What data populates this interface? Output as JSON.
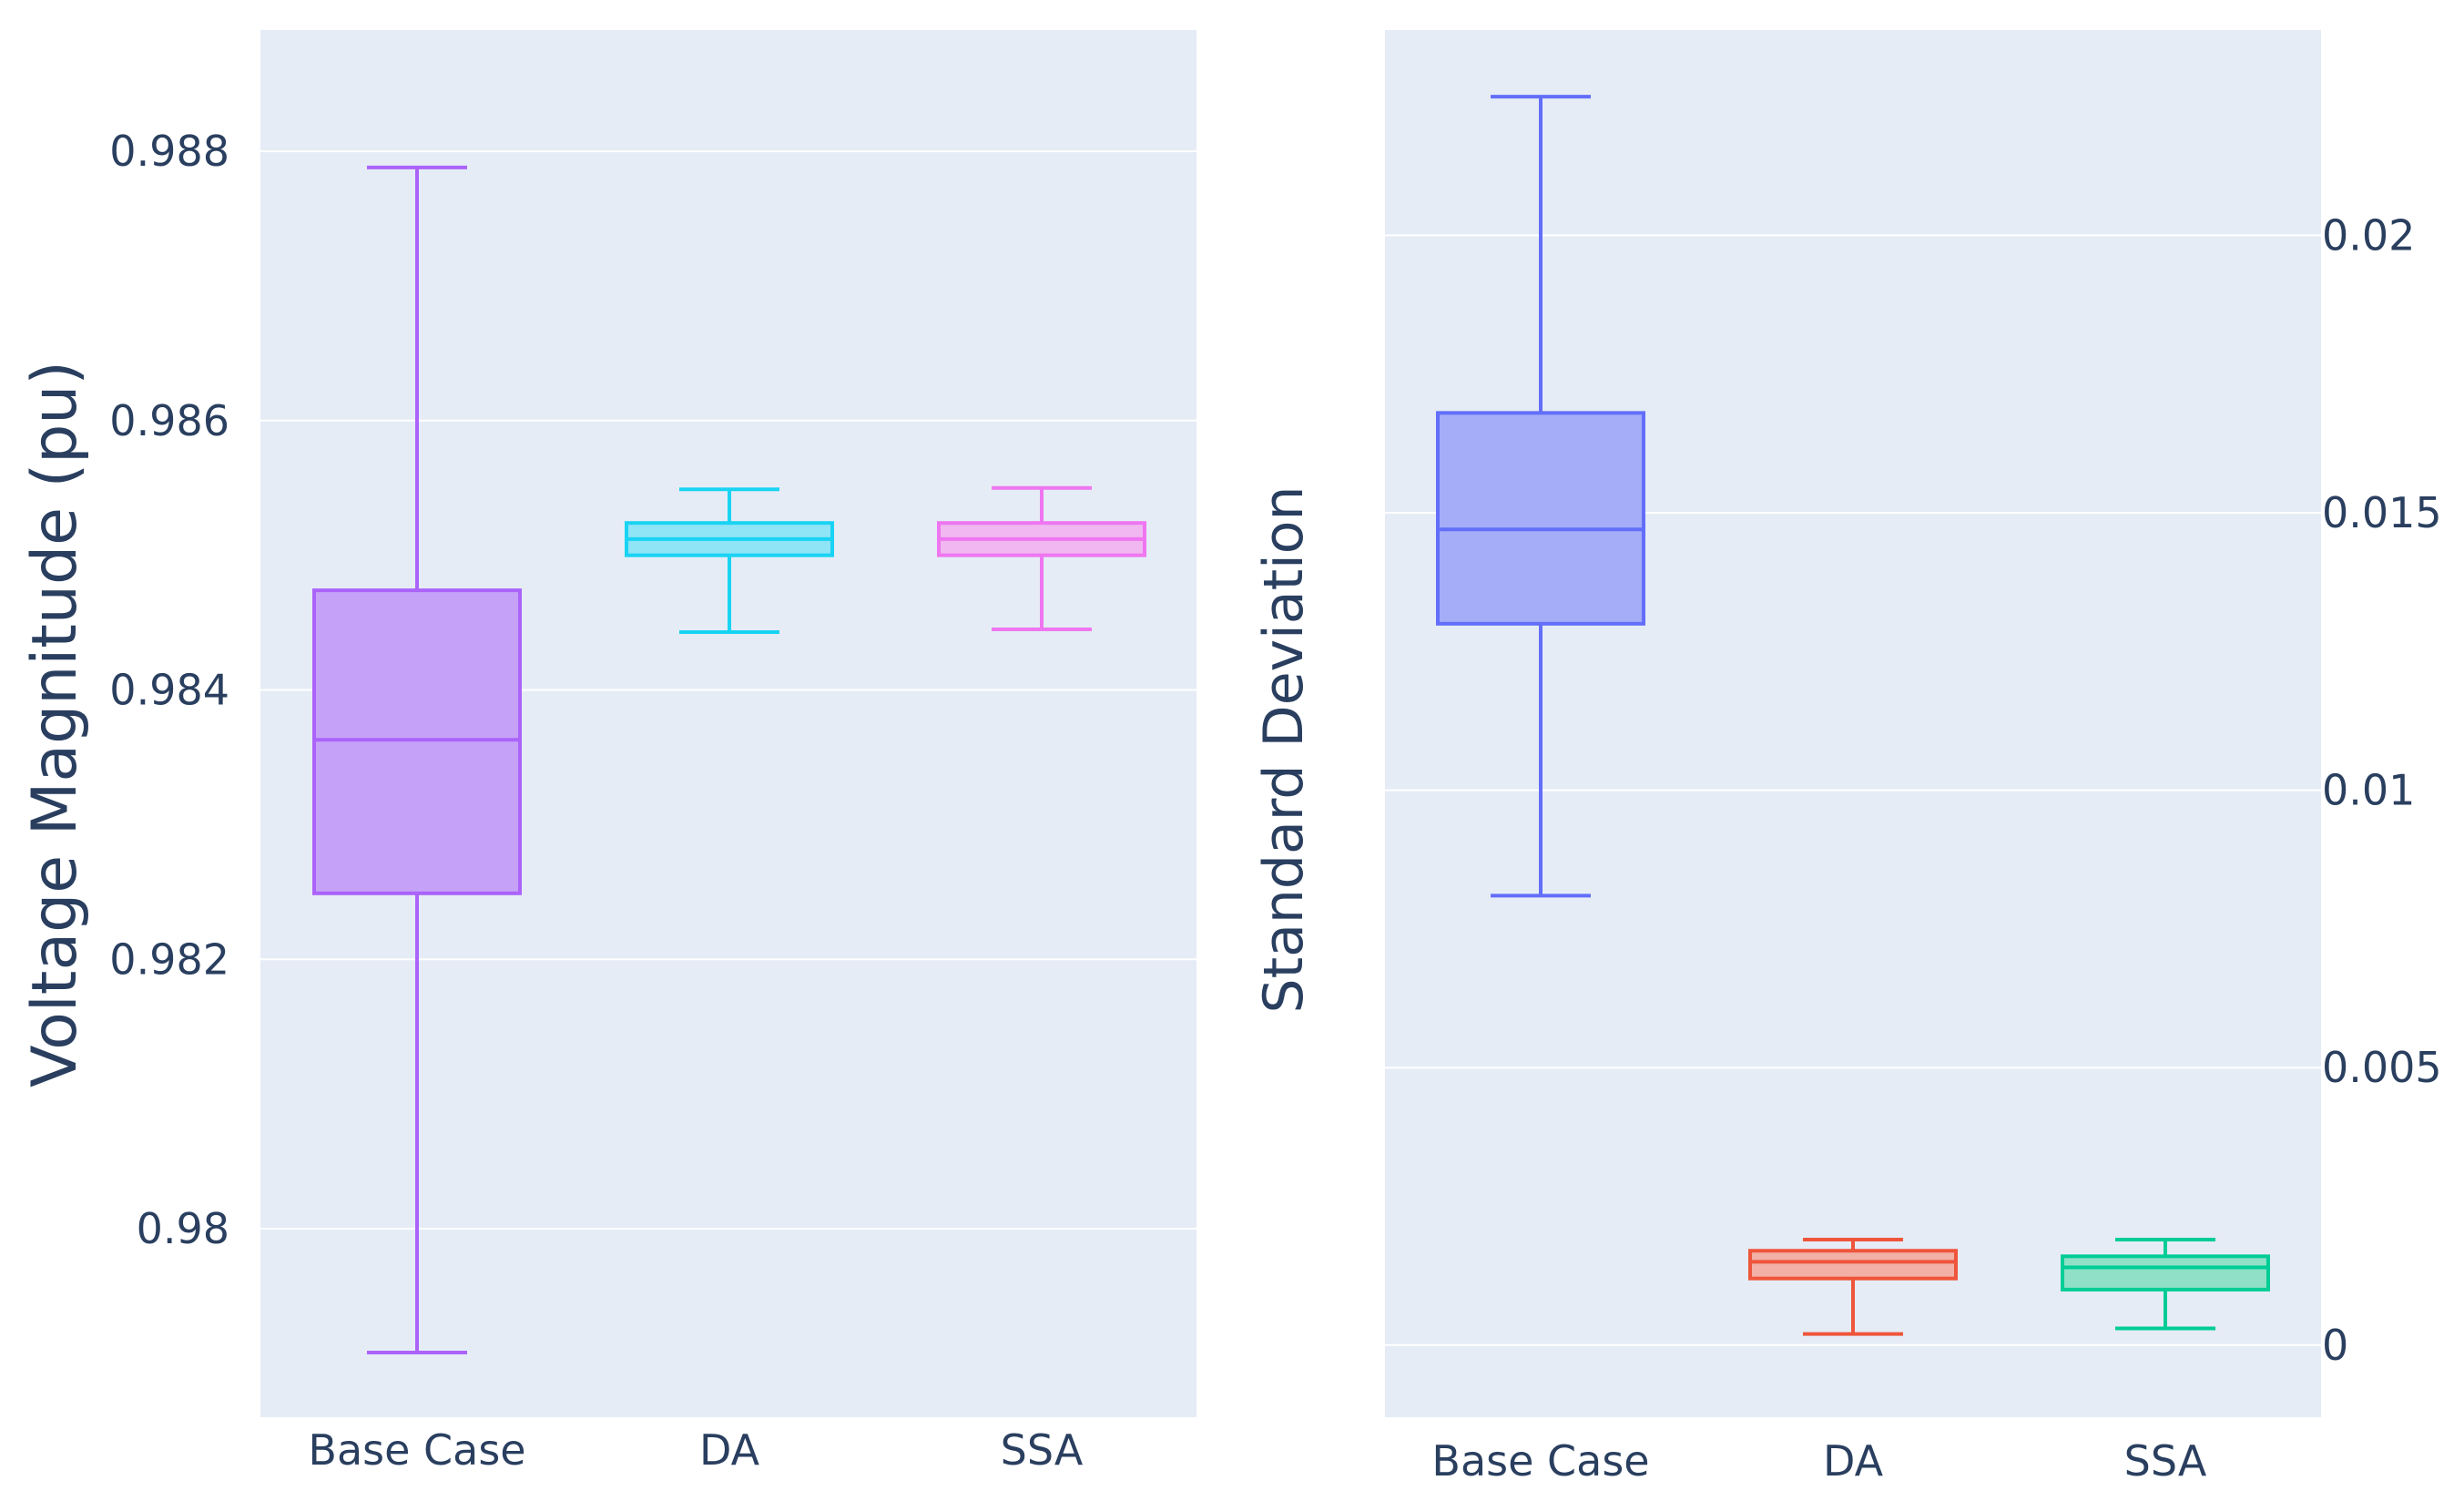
{
  "chart_data": [
    {
      "type": "box",
      "ylabel": "Voltage Magnitude (pu)",
      "ylim": [
        0.9786,
        0.9889
      ],
      "yticks": [
        "0.98",
        "0.982",
        "0.984",
        "0.986",
        "0.988"
      ],
      "categories": [
        "Base Case",
        "DA",
        "SSA"
      ],
      "series": [
        {
          "name": "Base Case",
          "color": "#ab63fa",
          "fill": "#c5a2f8",
          "min": 0.97908,
          "q1": 0.98249,
          "median": 0.98363,
          "q3": 0.98474,
          "max": 0.98788
        },
        {
          "name": "DA",
          "color": "#19d3f3",
          "fill": "#8fe4f6",
          "min": 0.98443,
          "q1": 0.985,
          "median": 0.98512,
          "q3": 0.98524,
          "max": 0.98549
        },
        {
          "name": "SSA",
          "color": "#ef76f0",
          "fill": "#f0b7f1",
          "min": 0.98445,
          "q1": 0.985,
          "median": 0.98512,
          "q3": 0.98524,
          "max": 0.9855
        }
      ]
    },
    {
      "type": "box",
      "ylabel": "Standard Deviation",
      "ylim": [
        -0.0013,
        0.0237
      ],
      "yticks": [
        "0",
        "0.005",
        "0.01",
        "0.015",
        "0.02"
      ],
      "categories": [
        "Base Case",
        "DA",
        "SSA"
      ],
      "series": [
        {
          "name": "Base Case",
          "color": "#636efa",
          "fill": "#a5adf8",
          "min": 0.0081,
          "q1": 0.013,
          "median": 0.0147,
          "q3": 0.0168,
          "max": 0.0225
        },
        {
          "name": "DA",
          "color": "#ef553b",
          "fill": "#f2b0a6",
          "min": 0.0002,
          "q1": 0.0012,
          "median": 0.0015,
          "q3": 0.0017,
          "max": 0.0019
        },
        {
          "name": "SSA",
          "color": "#00cc96",
          "fill": "#8fe0c6",
          "min": 0.0003,
          "q1": 0.001,
          "median": 0.0014,
          "q3": 0.0016,
          "max": 0.0019
        }
      ]
    }
  ]
}
